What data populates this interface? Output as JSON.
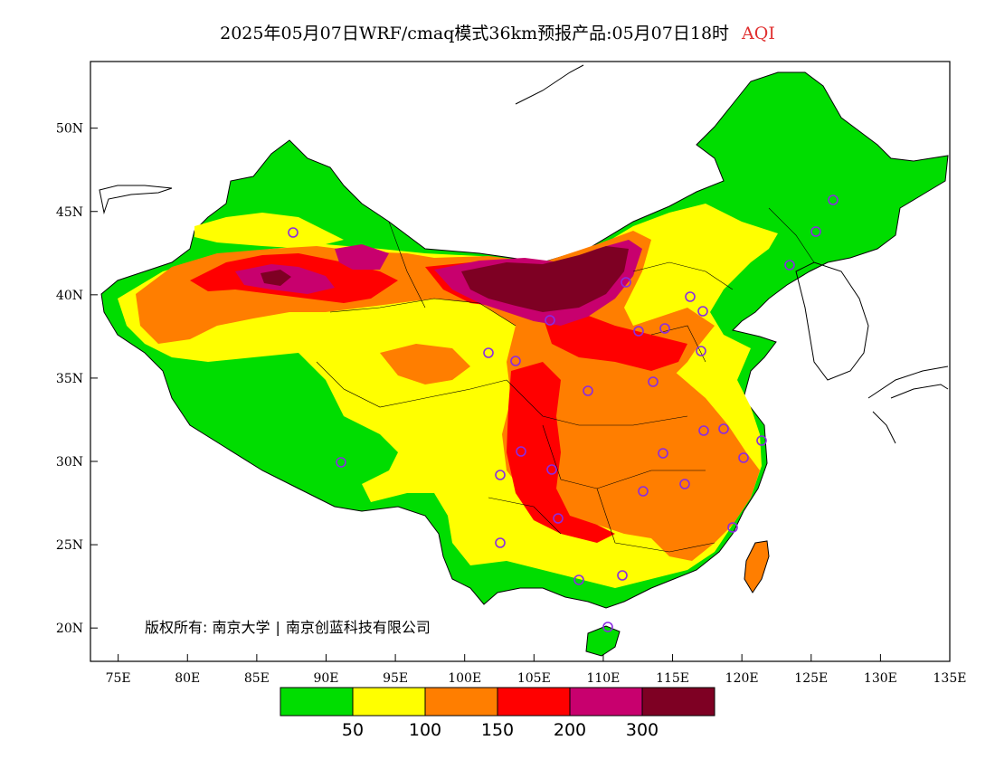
{
  "title": {
    "text": "2025年05月07日WRF/cmaq模式36km预报产品:05月07日18时",
    "variable": "AQI"
  },
  "map": {
    "lon_range": [
      73,
      135
    ],
    "lat_range": [
      18,
      54
    ],
    "y_ticks": [
      "50N",
      "45N",
      "40N",
      "35N",
      "30N",
      "25N",
      "20N"
    ],
    "x_ticks": [
      "75E",
      "80E",
      "85E",
      "90E",
      "95E",
      "100E",
      "105E",
      "110E",
      "115E",
      "120E",
      "125E",
      "130E",
      "135E"
    ],
    "colors": {
      "green": "#00dd00",
      "yellow": "#ffff00",
      "orange": "#ff7e00",
      "red": "#ff0000",
      "purple": "#c8006e",
      "maroon": "#7e0023",
      "station": "#8a2be2"
    }
  },
  "legend": {
    "colors": [
      "#00dd00",
      "#ffff00",
      "#ff7e00",
      "#ff0000",
      "#c8006e",
      "#7e0023"
    ],
    "labels": [
      "50",
      "100",
      "150",
      "200",
      "300"
    ]
  },
  "copyright": {
    "prefix": "版权所有:",
    "org1": "南京大学",
    "org2": "南京创蓝科技有限公司"
  }
}
